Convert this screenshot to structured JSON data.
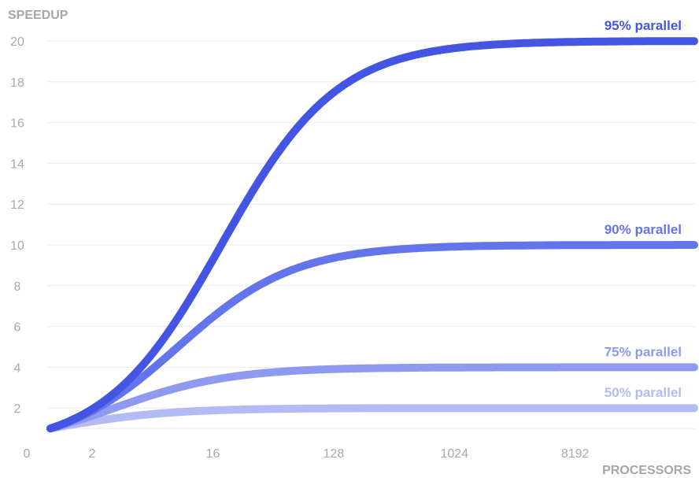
{
  "chart_data": {
    "type": "line",
    "ylabel": "SPEEDUP",
    "xlabel": "PROCESSORS",
    "ylim": [
      0,
      20
    ],
    "yticks": [
      2,
      4,
      6,
      8,
      10,
      12,
      14,
      16,
      18,
      20
    ],
    "x_origin_label": "0",
    "xticks": [
      {
        "label": "2",
        "log2": 1
      },
      {
        "label": "16",
        "log2": 4
      },
      {
        "label": "128",
        "log2": 7
      },
      {
        "label": "1024",
        "log2": 10
      },
      {
        "label": "8192",
        "log2": 13
      }
    ],
    "x_log2_start": 0,
    "x_log2_end": 16,
    "grid": true,
    "series": [
      {
        "name": "50% parallel",
        "parallel_fraction": 0.5,
        "max_speedup": 2,
        "color": "#b3bbf5"
      },
      {
        "name": "75% parallel",
        "parallel_fraction": 0.75,
        "max_speedup": 4,
        "color": "#8d9af0"
      },
      {
        "name": "90% parallel",
        "parallel_fraction": 0.9,
        "max_speedup": 10,
        "color": "#6474ea"
      },
      {
        "name": "95% parallel",
        "parallel_fraction": 0.95,
        "max_speedup": 20,
        "color": "#4355e2"
      }
    ]
  }
}
